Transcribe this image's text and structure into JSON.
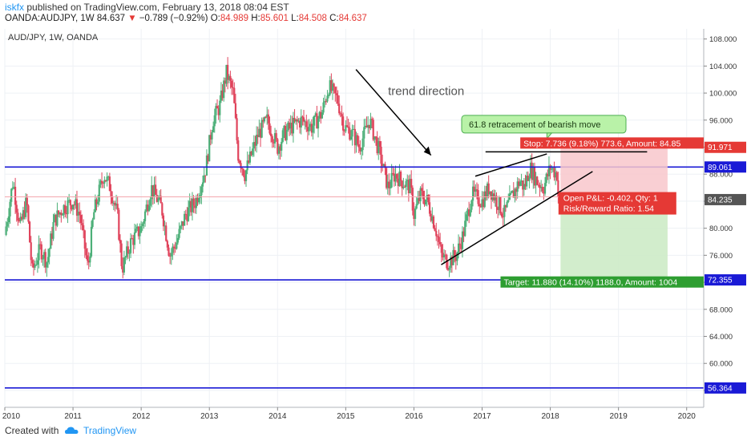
{
  "header": {
    "user": "iskfx",
    "published": "published on TradingView.com, February 13, 2018 08:04 EST",
    "symbol": "OANDA:AUDJPY, 1W",
    "last": "84.637",
    "change": "−0.789 (−0.92%)",
    "o_label": "O:",
    "o": "84.989",
    "h_label": "H:",
    "h": "85.601",
    "l_label": "L:",
    "l": "84.508",
    "c_label": "C:",
    "c": "84.637"
  },
  "footer": {
    "created": "Created with",
    "brand": "TradingView"
  },
  "chart_data": {
    "type": "candlestick",
    "title": "AUD/JPY, 1W, OANDA",
    "x_ticks": [
      "2010",
      "2011",
      "2012",
      "2013",
      "2014",
      "2015",
      "2016",
      "2017",
      "2018",
      "2019",
      "2020"
    ],
    "y_ticks": [
      "108.000",
      "104.000",
      "100.000",
      "96.000",
      "92.000",
      "88.000",
      "84.000",
      "80.000",
      "76.000",
      "72.000",
      "68.000",
      "64.000",
      "60.000",
      "56.000"
    ],
    "ylim": [
      53.5,
      109.5
    ],
    "xlim": [
      2010.0,
      2020.25
    ],
    "colors": {
      "up": "#4caf78",
      "down": "#e0445c",
      "level": "#1a1ad6",
      "trend": "#000000"
    },
    "horizontal_levels": [
      {
        "value": 89.061,
        "label": "89.061"
      },
      {
        "value": 72.355,
        "label": "72.355"
      },
      {
        "value": 56.364,
        "label": "56.364"
      }
    ],
    "price_labels": [
      {
        "value": 91.971,
        "label": "91.971",
        "color": "#e53935"
      },
      {
        "value": 84.235,
        "label": "84.235",
        "color": "#555555"
      }
    ],
    "current_price": 84.637,
    "candles_path": [
      [
        2010.0,
        79
      ],
      [
        2010.12,
        87
      ],
      [
        2010.22,
        80
      ],
      [
        2010.32,
        84
      ],
      [
        2010.4,
        73.5
      ],
      [
        2010.52,
        77
      ],
      [
        2010.62,
        75
      ],
      [
        2010.72,
        81
      ],
      [
        2010.85,
        83
      ],
      [
        2011.0,
        84
      ],
      [
        2011.1,
        82
      ],
      [
        2011.22,
        74
      ],
      [
        2011.3,
        82
      ],
      [
        2011.45,
        88
      ],
      [
        2011.55,
        86
      ],
      [
        2011.65,
        82
      ],
      [
        2011.72,
        74
      ],
      [
        2011.85,
        78
      ],
      [
        2012.0,
        80
      ],
      [
        2012.15,
        86
      ],
      [
        2012.3,
        83
      ],
      [
        2012.42,
        76
      ],
      [
        2012.52,
        78
      ],
      [
        2012.65,
        82
      ],
      [
        2012.8,
        84
      ],
      [
        2012.95,
        89
      ],
      [
        2013.05,
        96
      ],
      [
        2013.15,
        98
      ],
      [
        2013.25,
        103
      ],
      [
        2013.35,
        100
      ],
      [
        2013.42,
        91
      ],
      [
        2013.52,
        88
      ],
      [
        2013.62,
        91
      ],
      [
        2013.72,
        94
      ],
      [
        2013.85,
        96
      ],
      [
        2014.0,
        92
      ],
      [
        2014.1,
        94
      ],
      [
        2014.2,
        95
      ],
      [
        2014.35,
        96
      ],
      [
        2014.5,
        95
      ],
      [
        2014.65,
        97
      ],
      [
        2014.75,
        101
      ],
      [
        2014.88,
        99
      ],
      [
        2014.98,
        95
      ],
      [
        2015.1,
        94
      ],
      [
        2015.2,
        92
      ],
      [
        2015.35,
        96
      ],
      [
        2015.5,
        91
      ],
      [
        2015.62,
        86
      ],
      [
        2015.72,
        88
      ],
      [
        2015.82,
        87
      ],
      [
        2015.95,
        86
      ],
      [
        2016.0,
        82
      ],
      [
        2016.1,
        85
      ],
      [
        2016.2,
        84
      ],
      [
        2016.32,
        80
      ],
      [
        2016.4,
        76
      ],
      [
        2016.5,
        75
      ],
      [
        2016.62,
        76
      ],
      [
        2016.72,
        79
      ],
      [
        2016.85,
        85
      ],
      [
        2017.0,
        84
      ],
      [
        2017.1,
        86
      ],
      [
        2017.22,
        84
      ],
      [
        2017.32,
        82
      ],
      [
        2017.45,
        85
      ],
      [
        2017.55,
        87
      ],
      [
        2017.62,
        86
      ],
      [
        2017.7,
        89
      ],
      [
        2017.8,
        87
      ],
      [
        2017.9,
        86
      ],
      [
        2018.0,
        89
      ],
      [
        2018.1,
        88
      ],
      [
        2018.12,
        84.637
      ]
    ],
    "annotations": [
      {
        "text": "trend direction"
      },
      {
        "text": "61.8 retracement of bearish move"
      }
    ],
    "position": {
      "type": "short",
      "entry": 84.637,
      "stop_price": 92.373,
      "target_price": 72.757,
      "start": 2018.15,
      "end": 2019.72,
      "stop_label": "Stop: 7.736 (9.18%) 773.6, Amount: 84.85",
      "target_label": "Target: 11.880 (14.10%) 1188.0, Amount: 1004",
      "pnl_label": "Open P&L: -0.402, Qty: 1",
      "rr_label": "Risk/Reward Ratio: 1.54"
    }
  }
}
